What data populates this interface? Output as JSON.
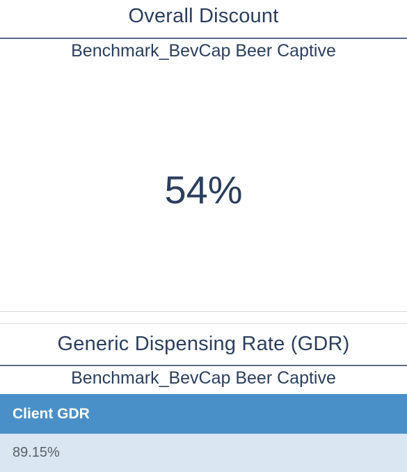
{
  "overall_discount": {
    "title": "Overall Discount",
    "subtitle": "Benchmark_BevCap Beer Captive",
    "value": "54%"
  },
  "gdr": {
    "title": "Generic Dispensing Rate (GDR)",
    "subtitle": "Benchmark_BevCap Beer Captive",
    "table": {
      "columns": [
        "Client GDR"
      ],
      "rows": [
        [
          "89.15%"
        ]
      ]
    }
  },
  "colors": {
    "text": "#2b3f5c",
    "header_bg": "#4a90c8",
    "row_bg": "#dae6f1"
  }
}
